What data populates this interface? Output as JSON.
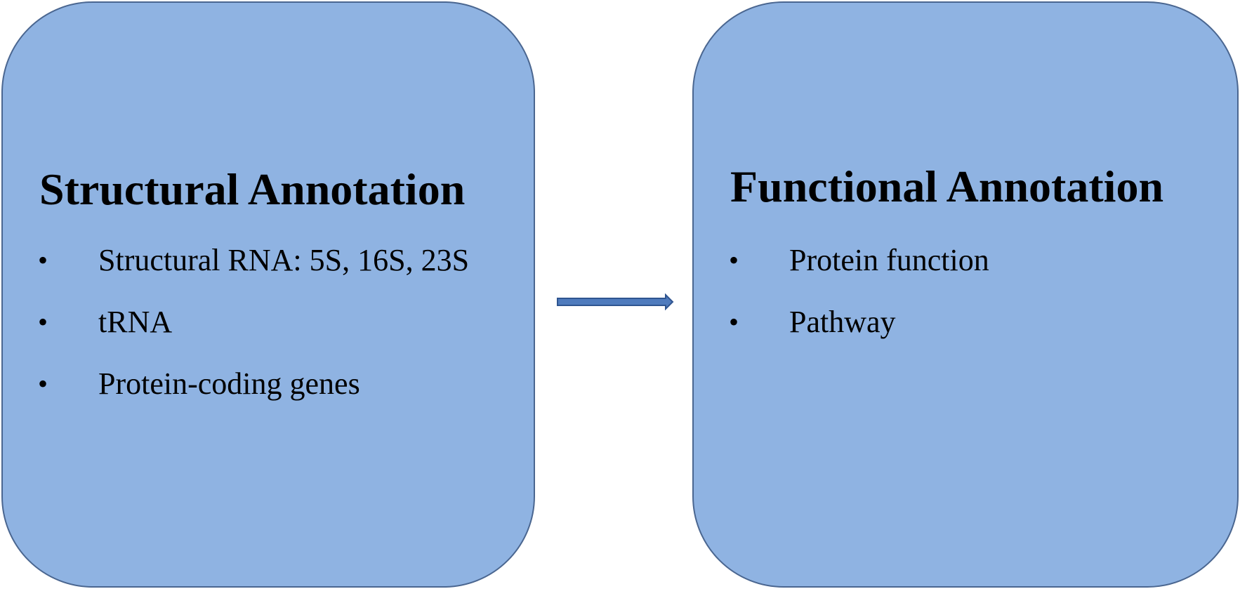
{
  "colors": {
    "box_fill": "#8fb3e2",
    "box_border": "#4a6690",
    "arrow_fill": "#4f7bbd",
    "arrow_border": "#2f5590",
    "text": "#000000"
  },
  "bullet_glyph": "•",
  "structural": {
    "title": "Structural Annotation",
    "items": [
      "Structural RNA: 5S, 16S, 23S",
      "tRNA",
      "Protein-coding genes"
    ]
  },
  "functional": {
    "title": "Functional Annotation",
    "items": [
      "Protein function",
      "Pathway"
    ]
  },
  "connector": {
    "icon": "right-arrow-icon",
    "direction": "right"
  }
}
